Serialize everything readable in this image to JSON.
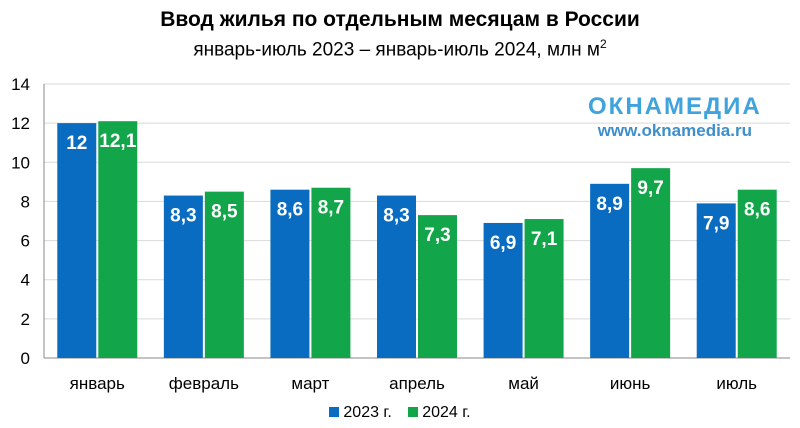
{
  "colors": {
    "series_2023": "#0a6cc0",
    "series_2024": "#13a54a",
    "grid": "#d9d9d9",
    "axis": "#888888"
  },
  "watermark": {
    "logo": "ОКНАМЕДИА",
    "url": "www.oknamedia.ru"
  },
  "chart_data": {
    "type": "bar",
    "title": "Ввод жилья по отдельным месяцам в России",
    "subtitle": "январь-июль 2023 – январь-июль 2024, млн м",
    "subtitle_sup": "2",
    "categories": [
      "январь",
      "февраль",
      "март",
      "апрель",
      "май",
      "июнь",
      "июль"
    ],
    "series": [
      {
        "name": "2023 г.",
        "values": [
          12,
          8.3,
          8.6,
          8.3,
          6.9,
          8.9,
          7.9
        ],
        "labels": [
          "12",
          "8,3",
          "8,6",
          "8,3",
          "6,9",
          "8,9",
          "7,9"
        ]
      },
      {
        "name": "2024 г.",
        "values": [
          12.1,
          8.5,
          8.7,
          7.3,
          7.1,
          9.7,
          8.6
        ],
        "labels": [
          "12,1",
          "8,5",
          "8,7",
          "7,3",
          "7,1",
          "9,7",
          "8,6"
        ]
      }
    ],
    "yticks": [
      "0",
      "2",
      "4",
      "6",
      "8",
      "10",
      "12",
      "14"
    ],
    "ylim": [
      0,
      14
    ],
    "grid": true,
    "legend_position": "bottom"
  }
}
